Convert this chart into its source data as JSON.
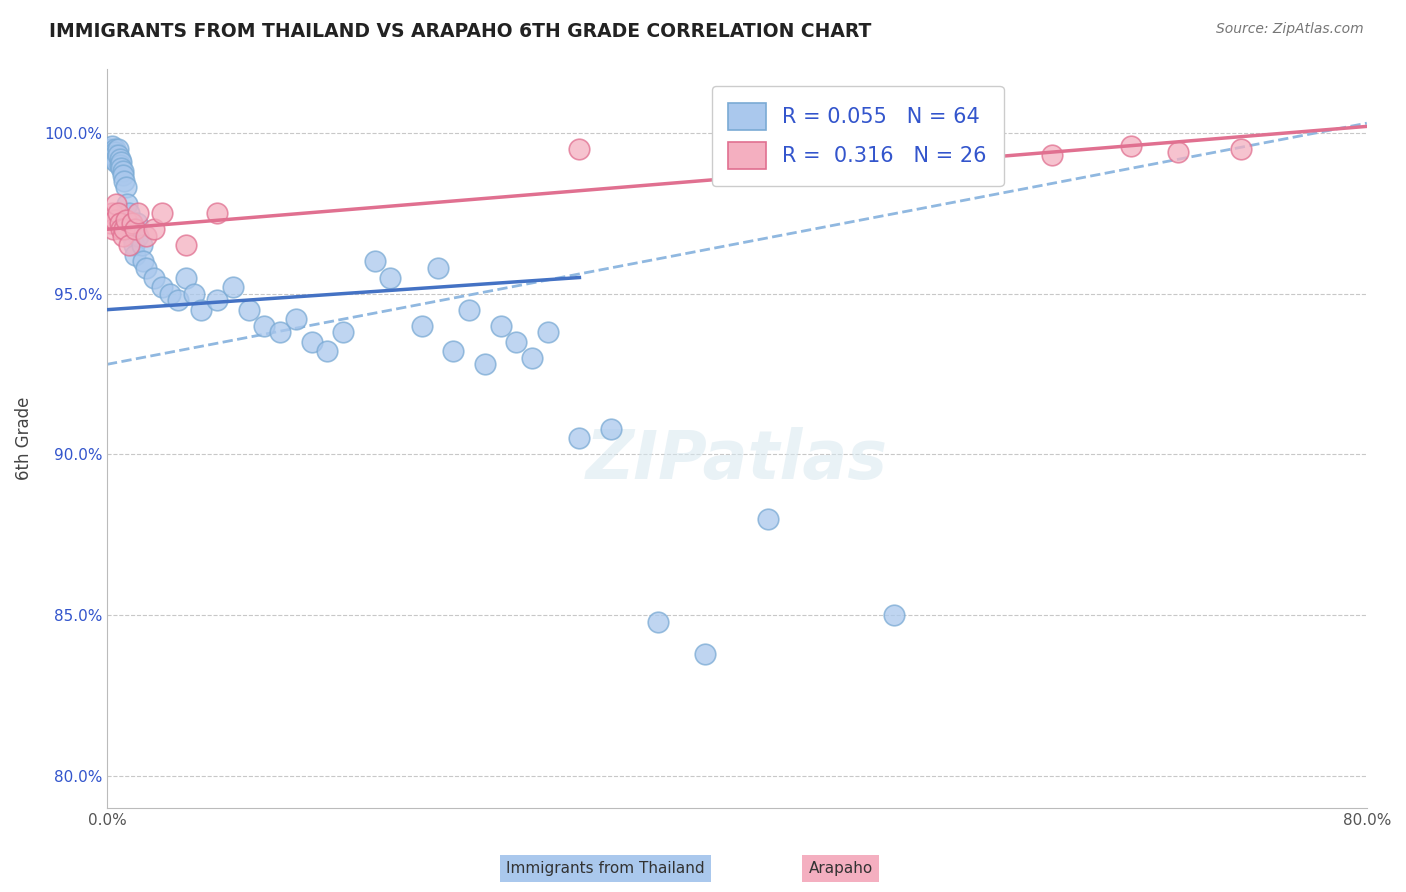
{
  "title": "IMMIGRANTS FROM THAILAND VS ARAPAHO 6TH GRADE CORRELATION CHART",
  "source": "Source: ZipAtlas.com",
  "ylabel": "6th Grade",
  "xlim": [
    0.0,
    80.0
  ],
  "ylim": [
    79.0,
    102.0
  ],
  "xticks": [
    0.0,
    20.0,
    40.0,
    60.0,
    80.0
  ],
  "yticks": [
    80.0,
    85.0,
    90.0,
    95.0,
    100.0
  ],
  "xtick_labels": [
    "0.0%",
    "",
    "",
    "",
    "80.0%"
  ],
  "ytick_labels": [
    "80.0%",
    "85.0%",
    "90.0%",
    "95.0%",
    "100.0%"
  ],
  "blue_R": 0.055,
  "blue_N": 64,
  "pink_R": 0.316,
  "pink_N": 26,
  "blue_color": "#aac8ed",
  "pink_color": "#f4afc0",
  "blue_edge": "#7aaad4",
  "pink_edge": "#e07090",
  "trend_blue": "#4472c4",
  "trend_pink": "#e07090",
  "dashed_blue": "#90b8e0",
  "legend_R_color": "#3355cc",
  "background": "#ffffff",
  "grid_color": "#c8c8c8",
  "blue_trend_x0": 0.0,
  "blue_trend_y0": 94.5,
  "blue_trend_x1": 30.0,
  "blue_trend_y1": 95.5,
  "pink_trend_x0": 0.0,
  "pink_trend_y0": 97.0,
  "pink_trend_x1": 80.0,
  "pink_trend_y1": 100.2,
  "dashed_x0": 0.0,
  "dashed_y0": 92.8,
  "dashed_x1": 80.0,
  "dashed_y1": 100.3,
  "blue_scatter_x": [
    0.2,
    0.3,
    0.3,
    0.4,
    0.4,
    0.5,
    0.5,
    0.5,
    0.6,
    0.6,
    0.7,
    0.7,
    0.8,
    0.8,
    0.9,
    0.9,
    1.0,
    1.0,
    1.1,
    1.2,
    1.3,
    1.4,
    1.5,
    1.6,
    1.7,
    1.8,
    1.9,
    2.0,
    2.2,
    2.3,
    2.5,
    3.0,
    3.5,
    4.0,
    4.5,
    5.0,
    5.5,
    6.0,
    7.0,
    8.0,
    9.0,
    10.0,
    11.0,
    12.0,
    13.0,
    14.0,
    15.0,
    17.0,
    18.0,
    20.0,
    21.0,
    22.0,
    23.0,
    24.0,
    25.0,
    26.0,
    27.0,
    28.0,
    30.0,
    32.0,
    35.0,
    38.0,
    42.0,
    50.0
  ],
  "blue_scatter_y": [
    99.5,
    99.6,
    99.4,
    99.3,
    99.2,
    99.5,
    99.4,
    99.3,
    99.2,
    99.1,
    99.5,
    99.3,
    99.2,
    99.0,
    99.1,
    98.9,
    98.8,
    98.7,
    98.5,
    98.3,
    97.8,
    97.5,
    97.0,
    96.8,
    96.5,
    96.2,
    97.2,
    96.8,
    96.5,
    96.0,
    95.8,
    95.5,
    95.2,
    95.0,
    94.8,
    95.5,
    95.0,
    94.5,
    94.8,
    95.2,
    94.5,
    94.0,
    93.8,
    94.2,
    93.5,
    93.2,
    93.8,
    96.0,
    95.5,
    94.0,
    95.8,
    93.2,
    94.5,
    92.8,
    94.0,
    93.5,
    93.0,
    93.8,
    90.5,
    90.8,
    84.8,
    83.8,
    88.0,
    85.0
  ],
  "pink_scatter_x": [
    0.2,
    0.3,
    0.4,
    0.5,
    0.6,
    0.7,
    0.8,
    0.9,
    1.0,
    1.1,
    1.2,
    1.4,
    1.6,
    1.8,
    2.0,
    2.5,
    3.0,
    3.5,
    5.0,
    7.0,
    30.0,
    55.0,
    60.0,
    65.0,
    68.0,
    72.0
  ],
  "pink_scatter_y": [
    97.2,
    97.5,
    97.0,
    97.3,
    97.8,
    97.5,
    97.2,
    97.0,
    96.8,
    97.0,
    97.3,
    96.5,
    97.2,
    97.0,
    97.5,
    96.8,
    97.0,
    97.5,
    96.5,
    97.5,
    99.5,
    99.5,
    99.3,
    99.6,
    99.4,
    99.5
  ]
}
